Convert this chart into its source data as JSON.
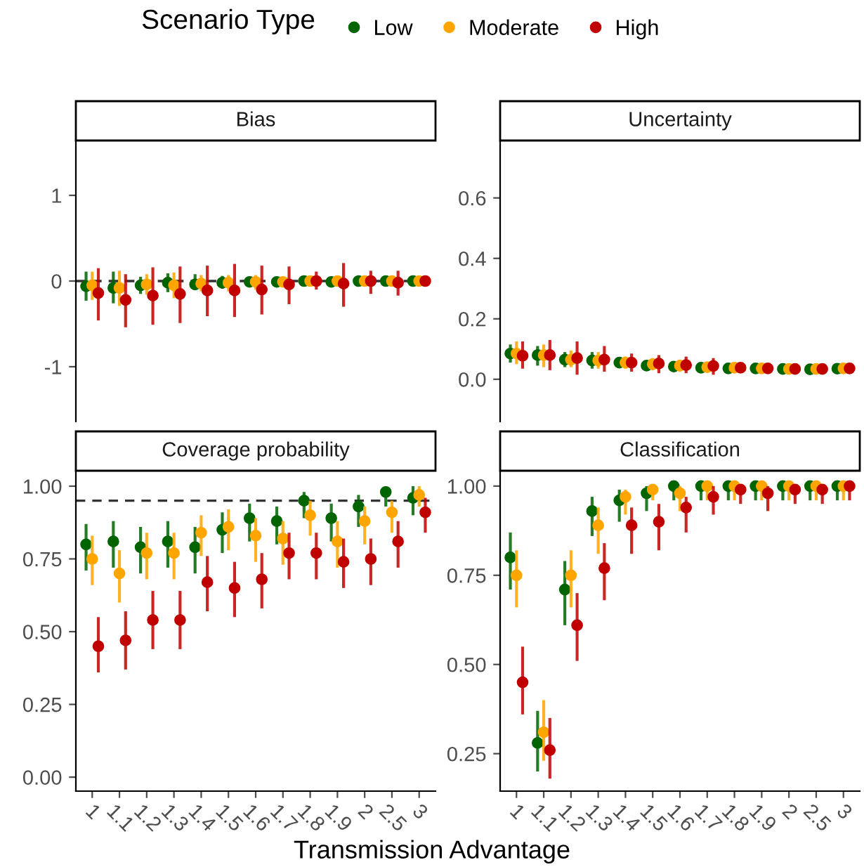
{
  "chart_data": [
    {
      "type": "scatter",
      "title": "Bias",
      "legend": "top",
      "legend_title": "Scenario Type",
      "marker": "circle",
      "grid": false,
      "tick_labels": "y",
      "categories": [
        "1",
        "1.1",
        "1.2",
        "1.3",
        "1.4",
        "1.5",
        "1.6",
        "1.7",
        "1.8",
        "1.9",
        "2",
        "2.5",
        "3"
      ],
      "ylim": [
        -1.64,
        1.64
      ],
      "yticks": [
        -1,
        0,
        1
      ],
      "ref_lines": [
        {
          "axis": "y",
          "value": 0,
          "line_style": "dashed",
          "color": "#333333"
        }
      ],
      "series": [
        {
          "name": "Low",
          "color": "#006400",
          "values": [
            -0.06,
            -0.08,
            -0.05,
            -0.02,
            -0.04,
            -0.02,
            -0.01,
            -0.01,
            0,
            -0.01,
            0,
            0,
            0
          ],
          "errors": [
            [
              -0.23,
              0.11
            ],
            [
              -0.26,
              0.11
            ],
            [
              -0.15,
              0.05
            ],
            [
              -0.13,
              0.09
            ],
            [
              -0.1,
              0.08
            ],
            [
              -0.09,
              0.06
            ],
            [
              -0.05,
              0.04
            ],
            [
              -0.03,
              0.02
            ],
            [
              -0.02,
              0.02
            ],
            [
              -0.04,
              0.03
            ],
            [
              -0.02,
              0.02
            ],
            [
              -0.02,
              0.02
            ],
            [
              -0.01,
              0.01
            ]
          ]
        },
        {
          "name": "Moderate",
          "color": "#ffa500",
          "values": [
            -0.05,
            -0.08,
            -0.04,
            -0.05,
            -0.03,
            -0.02,
            -0.01,
            -0.01,
            0,
            0,
            0,
            0,
            0
          ],
          "errors": [
            [
              -0.22,
              0.11
            ],
            [
              -0.29,
              0.12
            ],
            [
              -0.16,
              0.08
            ],
            [
              -0.2,
              0.1
            ],
            [
              -0.12,
              0.07
            ],
            [
              -0.12,
              0.07
            ],
            [
              -0.1,
              0.07
            ],
            [
              -0.06,
              0.04
            ],
            [
              -0.04,
              0.04
            ],
            [
              -0.04,
              0.04
            ],
            [
              -0.03,
              0.03
            ],
            [
              -0.03,
              0.03
            ],
            [
              -0.02,
              0.02
            ]
          ]
        },
        {
          "name": "High",
          "color": "#c00000",
          "values": [
            -0.14,
            -0.22,
            -0.17,
            -0.15,
            -0.11,
            -0.11,
            -0.1,
            -0.04,
            0,
            -0.03,
            0,
            -0.02,
            0
          ],
          "errors": [
            [
              -0.46,
              0.15
            ],
            [
              -0.54,
              0.08
            ],
            [
              -0.51,
              0.16
            ],
            [
              -0.49,
              0.17
            ],
            [
              -0.41,
              0.18
            ],
            [
              -0.42,
              0.2
            ],
            [
              -0.39,
              0.18
            ],
            [
              -0.27,
              0.17
            ],
            [
              -0.1,
              0.11
            ],
            [
              -0.3,
              0.21
            ],
            [
              -0.15,
              0.12
            ],
            [
              -0.17,
              0.12
            ],
            [
              -0.03,
              0.03
            ]
          ]
        }
      ]
    },
    {
      "type": "scatter",
      "title": "Uncertainty",
      "marker": "circle",
      "grid": false,
      "tick_labels": "y",
      "categories": [
        "1",
        "1.1",
        "1.2",
        "1.3",
        "1.4",
        "1.5",
        "1.6",
        "1.7",
        "1.8",
        "1.9",
        "2",
        "2.5",
        "3"
      ],
      "ylim": [
        -0.14,
        0.79
      ],
      "yticks": [
        {
          "value": 0,
          "label": "0.0"
        },
        0.2,
        0.4,
        0.6
      ],
      "series": [
        {
          "color": "#006400",
          "values": [
            0.085,
            0.08,
            0.065,
            0.062,
            0.055,
            0.045,
            0.042,
            0.038,
            0.036,
            0.036,
            0.034,
            0.033,
            0.035
          ],
          "errors": [
            [
              0.055,
              0.115
            ],
            [
              0.045,
              0.11
            ],
            [
              0.04,
              0.09
            ],
            [
              0.035,
              0.09
            ],
            [
              0.04,
              0.07
            ],
            [
              0.035,
              0.06
            ],
            [
              0.03,
              0.055
            ],
            [
              0.03,
              0.05
            ],
            [
              0.03,
              0.045
            ],
            [
              0.03,
              0.045
            ],
            [
              0.03,
              0.04
            ],
            [
              0.03,
              0.04
            ],
            [
              0.03,
              0.04
            ]
          ]
        },
        {
          "color": "#ffa500",
          "values": [
            0.085,
            0.08,
            0.065,
            0.062,
            0.055,
            0.05,
            0.045,
            0.04,
            0.038,
            0.036,
            0.034,
            0.034,
            0.036
          ],
          "errors": [
            [
              0.05,
              0.125
            ],
            [
              0.04,
              0.115
            ],
            [
              0.04,
              0.095
            ],
            [
              0.035,
              0.09
            ],
            [
              0.035,
              0.075
            ],
            [
              0.03,
              0.07
            ],
            [
              0.025,
              0.065
            ],
            [
              0.03,
              0.055
            ],
            [
              0.025,
              0.05
            ],
            [
              0.03,
              0.045
            ],
            [
              0.03,
              0.04
            ],
            [
              0.03,
              0.04
            ],
            [
              0.03,
              0.04
            ]
          ]
        },
        {
          "color": "#c00000",
          "values": [
            0.078,
            0.08,
            0.07,
            0.065,
            0.055,
            0.052,
            0.047,
            0.044,
            0.038,
            0.036,
            0.034,
            0.034,
            0.036
          ],
          "errors": [
            [
              0.035,
              0.125
            ],
            [
              0.03,
              0.13
            ],
            [
              0.015,
              0.125
            ],
            [
              0.025,
              0.11
            ],
            [
              0.025,
              0.085
            ],
            [
              0.02,
              0.08
            ],
            [
              0.02,
              0.075
            ],
            [
              0.015,
              0.07
            ],
            [
              0.025,
              0.05
            ],
            [
              0.025,
              0.05
            ],
            [
              0.03,
              0.04
            ],
            [
              0.03,
              0.04
            ],
            [
              0.03,
              0.04
            ]
          ]
        }
      ]
    },
    {
      "type": "scatter",
      "title": "Coverage probability",
      "xlabel": "Transmission Advantage",
      "marker": "circle",
      "grid": false,
      "categories": [
        "1",
        "1.1",
        "1.2",
        "1.3",
        "1.4",
        "1.5",
        "1.6",
        "1.7",
        "1.8",
        "1.9",
        "2",
        "2.5",
        "3"
      ],
      "ylim": [
        -0.048,
        1.053
      ],
      "yticks": [
        {
          "value": 0,
          "label": "0.00"
        },
        0.25,
        {
          "value": 0.5,
          "label": "0.50"
        },
        0.75,
        {
          "value": 1,
          "label": "1.00"
        }
      ],
      "ref_lines": [
        {
          "axis": "y",
          "value": 0.95,
          "line_style": "dashed",
          "color": "#333333"
        }
      ],
      "series": [
        {
          "color": "#006400",
          "values": [
            0.8,
            0.81,
            0.79,
            0.81,
            0.79,
            0.85,
            0.89,
            0.88,
            0.95,
            0.89,
            0.93,
            0.98,
            0.96
          ],
          "errors": [
            [
              0.71,
              0.87
            ],
            [
              0.72,
              0.88
            ],
            [
              0.7,
              0.86
            ],
            [
              0.72,
              0.88
            ],
            [
              0.7,
              0.86
            ],
            [
              0.77,
              0.91
            ],
            [
              0.81,
              0.94
            ],
            [
              0.8,
              0.93
            ],
            [
              0.89,
              0.98
            ],
            [
              0.81,
              0.94
            ],
            [
              0.86,
              0.97
            ],
            [
              0.93,
              1.0
            ],
            [
              0.9,
              1.0
            ]
          ]
        },
        {
          "color": "#ffa500",
          "values": [
            0.75,
            0.7,
            0.77,
            0.77,
            0.84,
            0.86,
            0.83,
            0.82,
            0.9,
            0.81,
            0.88,
            0.91,
            0.97
          ],
          "errors": [
            [
              0.66,
              0.83
            ],
            [
              0.6,
              0.78
            ],
            [
              0.68,
              0.84
            ],
            [
              0.68,
              0.84
            ],
            [
              0.76,
              0.9
            ],
            [
              0.78,
              0.92
            ],
            [
              0.74,
              0.89
            ],
            [
              0.73,
              0.88
            ],
            [
              0.83,
              0.95
            ],
            [
              0.72,
              0.88
            ],
            [
              0.8,
              0.93
            ],
            [
              0.84,
              0.95
            ],
            [
              0.93,
              1.0
            ]
          ]
        },
        {
          "color": "#c00000",
          "values": [
            0.45,
            0.47,
            0.54,
            0.54,
            0.67,
            0.65,
            0.68,
            0.77,
            0.77,
            0.74,
            0.75,
            0.81,
            0.91
          ],
          "errors": [
            [
              0.36,
              0.55
            ],
            [
              0.37,
              0.57
            ],
            [
              0.44,
              0.64
            ],
            [
              0.44,
              0.64
            ],
            [
              0.57,
              0.76
            ],
            [
              0.55,
              0.74
            ],
            [
              0.58,
              0.77
            ],
            [
              0.68,
              0.84
            ],
            [
              0.68,
              0.84
            ],
            [
              0.65,
              0.82
            ],
            [
              0.66,
              0.82
            ],
            [
              0.72,
              0.88
            ],
            [
              0.84,
              0.96
            ]
          ]
        }
      ]
    },
    {
      "type": "scatter",
      "title": "Classification",
      "marker": "circle",
      "grid": false,
      "categories": [
        "1",
        "1.1",
        "1.2",
        "1.3",
        "1.4",
        "1.5",
        "1.6",
        "1.7",
        "1.8",
        "1.9",
        "2",
        "2.5",
        "3"
      ],
      "ylim": [
        0.145,
        1.043
      ],
      "yticks": [
        0.25,
        {
          "value": 0.5,
          "label": "0.50"
        },
        0.75,
        {
          "value": 1,
          "label": "1.00"
        }
      ],
      "series": [
        {
          "color": "#006400",
          "values": [
            0.8,
            0.28,
            0.71,
            0.93,
            0.96,
            0.98,
            1,
            1,
            1,
            1,
            1,
            1,
            1
          ],
          "errors": [
            [
              0.71,
              0.87
            ],
            [
              0.2,
              0.37
            ],
            [
              0.61,
              0.79
            ],
            [
              0.86,
              0.97
            ],
            [
              0.9,
              0.99
            ],
            [
              0.93,
              1.0
            ],
            [
              0.96,
              1.0
            ],
            [
              0.96,
              1.0
            ],
            [
              0.96,
              1.0
            ],
            [
              0.96,
              1.0
            ],
            [
              0.96,
              1.0
            ],
            [
              0.96,
              1.0
            ],
            [
              0.96,
              1.0
            ]
          ]
        },
        {
          "color": "#ffa500",
          "values": [
            0.75,
            0.31,
            0.75,
            0.89,
            0.97,
            0.99,
            0.98,
            1,
            1,
            1,
            1,
            1,
            1
          ],
          "errors": [
            [
              0.66,
              0.82
            ],
            [
              0.23,
              0.4
            ],
            [
              0.66,
              0.82
            ],
            [
              0.81,
              0.94
            ],
            [
              0.92,
              0.99
            ],
            [
              0.96,
              1.0
            ],
            [
              0.93,
              1.0
            ],
            [
              0.96,
              1.0
            ],
            [
              0.96,
              1.0
            ],
            [
              0.96,
              1.0
            ],
            [
              0.96,
              1.0
            ],
            [
              0.96,
              1.0
            ],
            [
              0.96,
              1.0
            ]
          ]
        },
        {
          "color": "#c00000",
          "values": [
            0.45,
            0.26,
            0.61,
            0.77,
            0.89,
            0.9,
            0.94,
            0.97,
            0.99,
            0.98,
            0.99,
            0.99,
            1
          ],
          "errors": [
            [
              0.36,
              0.55
            ],
            [
              0.18,
              0.35
            ],
            [
              0.51,
              0.7
            ],
            [
              0.68,
              0.84
            ],
            [
              0.81,
              0.94
            ],
            [
              0.82,
              0.95
            ],
            [
              0.87,
              0.97
            ],
            [
              0.92,
              1.0
            ],
            [
              0.95,
              1.0
            ],
            [
              0.93,
              1.0
            ],
            [
              0.95,
              1.0
            ],
            [
              0.95,
              1.0
            ],
            [
              0.96,
              1.0
            ]
          ]
        }
      ]
    }
  ]
}
